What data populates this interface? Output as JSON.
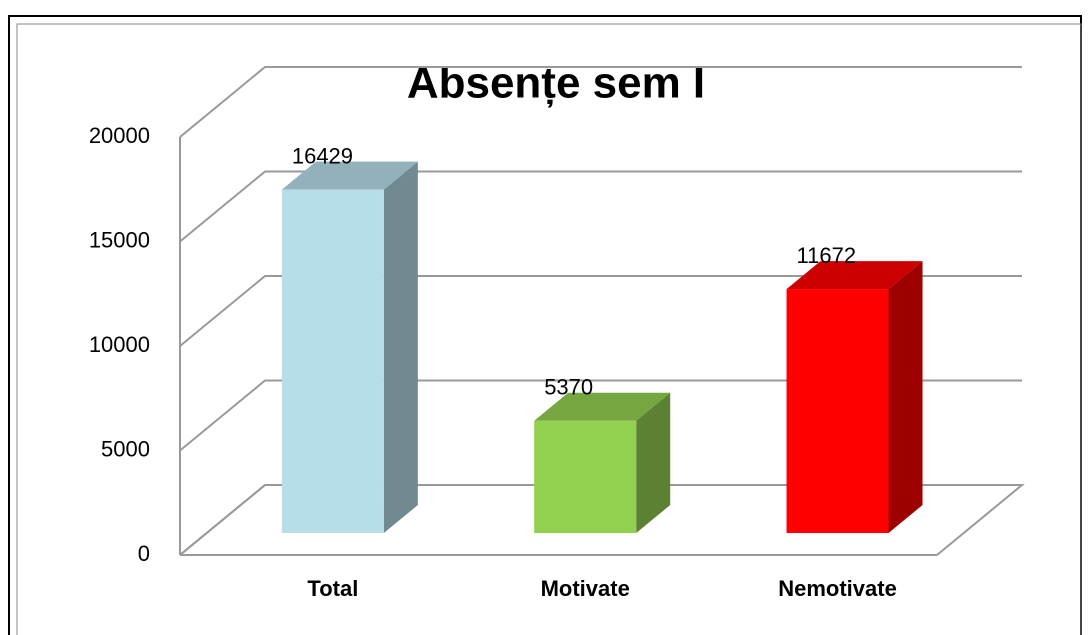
{
  "chart_data": {
    "type": "bar3d",
    "title": "Absențe sem I",
    "categories": [
      "Total",
      "Motivate",
      "Nemotivate"
    ],
    "values": [
      16429,
      5370,
      11672
    ],
    "colors": [
      "#b7dde8",
      "#92d050",
      "#ff0000"
    ],
    "ylim": [
      0,
      20000
    ],
    "yticks": [
      0,
      5000,
      10000,
      15000,
      20000
    ],
    "grid": true
  }
}
